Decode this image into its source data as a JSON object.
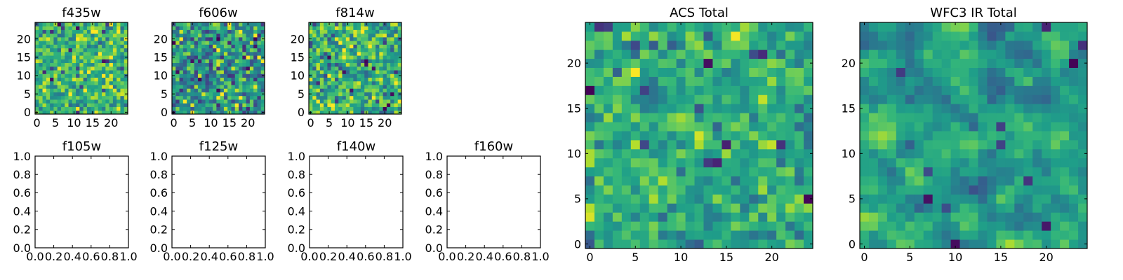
{
  "chart_data": [
    {
      "type": "heatmap",
      "title": "f435w",
      "xlim": [
        0,
        24
      ],
      "ylim": [
        0,
        24
      ],
      "xticks": [
        0,
        5,
        10,
        15,
        20
      ],
      "yticks": [
        0,
        5,
        10,
        15,
        20
      ],
      "size": 25,
      "colormap": "viridis",
      "value_range": [
        0.45,
        1.0
      ],
      "seed": 11,
      "mean": 0.82,
      "sd": 0.09,
      "smooth": 0.0
    },
    {
      "type": "heatmap",
      "title": "f606w",
      "xlim": [
        0,
        24
      ],
      "ylim": [
        0,
        24
      ],
      "xticks": [
        0,
        5,
        10,
        15,
        20
      ],
      "yticks": [
        0,
        5,
        10,
        15,
        20
      ],
      "size": 25,
      "colormap": "viridis",
      "value_range": [
        0.45,
        1.0
      ],
      "seed": 23,
      "mean": 0.74,
      "sd": 0.11,
      "smooth": 0.0
    },
    {
      "type": "heatmap",
      "title": "f814w",
      "xlim": [
        0,
        24
      ],
      "ylim": [
        0,
        24
      ],
      "xticks": [
        0,
        5,
        10,
        15,
        20
      ],
      "yticks": [
        0,
        5,
        10,
        15,
        20
      ],
      "size": 25,
      "colormap": "viridis",
      "value_range": [
        0.45,
        1.0
      ],
      "seed": 37,
      "mean": 0.8,
      "sd": 0.1,
      "smooth": 0.0
    },
    {
      "type": "empty",
      "title": "f105w",
      "xlim": [
        0,
        1
      ],
      "ylim": [
        0,
        1
      ],
      "xticks": [
        "0.0",
        "0.2",
        "0.4",
        "0.6",
        "0.8",
        "1.0"
      ],
      "yticks": [
        "0.0",
        "0.2",
        "0.4",
        "0.6",
        "0.8",
        "1.0"
      ]
    },
    {
      "type": "empty",
      "title": "f125w",
      "xlim": [
        0,
        1
      ],
      "ylim": [
        0,
        1
      ],
      "xticks": [
        "0.0",
        "0.2",
        "0.4",
        "0.6",
        "0.8",
        "1.0"
      ],
      "yticks": [
        "0.0",
        "0.2",
        "0.4",
        "0.6",
        "0.8",
        "1.0"
      ]
    },
    {
      "type": "empty",
      "title": "f140w",
      "xlim": [
        0,
        1
      ],
      "ylim": [
        0,
        1
      ],
      "xticks": [
        "0.0",
        "0.2",
        "0.4",
        "0.6",
        "0.8",
        "1.0"
      ],
      "yticks": [
        "0.0",
        "0.2",
        "0.4",
        "0.6",
        "0.8",
        "1.0"
      ]
    },
    {
      "type": "empty",
      "title": "f160w",
      "xlim": [
        0,
        1
      ],
      "ylim": [
        0,
        1
      ],
      "xticks": [
        "0.0",
        "0.2",
        "0.4",
        "0.6",
        "0.8",
        "1.0"
      ],
      "yticks": [
        "0.0",
        "0.2",
        "0.4",
        "0.6",
        "0.8",
        "1.0"
      ]
    },
    {
      "type": "heatmap",
      "title": "ACS Total",
      "xlim": [
        0,
        24
      ],
      "ylim": [
        0,
        24
      ],
      "xticks": [
        0,
        5,
        10,
        15,
        20
      ],
      "yticks": [
        0,
        5,
        10,
        15,
        20
      ],
      "size": 25,
      "colormap": "viridis",
      "value_range": [
        0.45,
        1.0
      ],
      "seed": 51,
      "mean": 0.79,
      "sd": 0.085,
      "smooth": 0.25
    },
    {
      "type": "heatmap",
      "title": "WFC3 IR Total",
      "xlim": [
        0,
        24
      ],
      "ylim": [
        0,
        24
      ],
      "xticks": [
        0,
        5,
        10,
        15,
        20
      ],
      "yticks": [
        0,
        5,
        10,
        15,
        20
      ],
      "size": 25,
      "colormap": "viridis",
      "value_range": [
        0.45,
        1.0
      ],
      "seed": 73,
      "mean": 0.76,
      "sd": 0.08,
      "smooth": 0.6
    }
  ]
}
